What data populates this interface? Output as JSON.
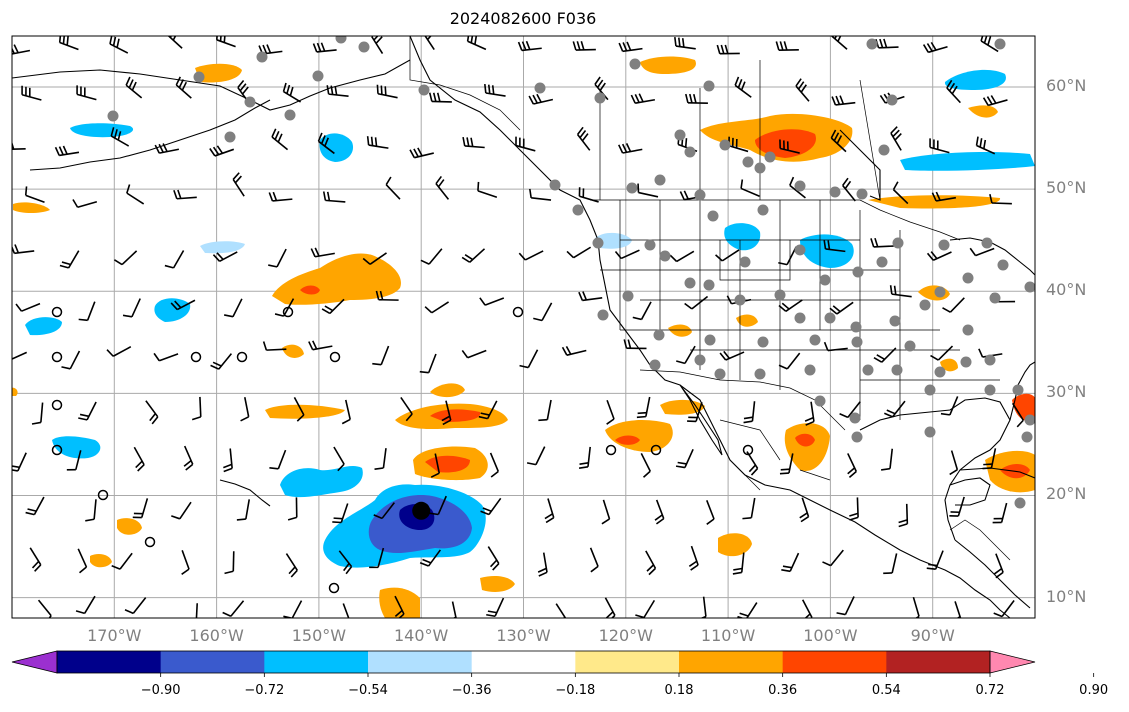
{
  "title": "2024082600 F036",
  "map": {
    "projection": "equirectangular",
    "lon_range": [
      -180,
      -80
    ],
    "lat_range": [
      8,
      65
    ],
    "grid": true,
    "lon_ticks": [
      "170°W",
      "160°W",
      "150°W",
      "140°W",
      "130°W",
      "120°W",
      "110°W",
      "100°W",
      "90°W"
    ],
    "lat_ticks": [
      "60°N",
      "50°N",
      "40°N",
      "30°N",
      "20°N",
      "10°N"
    ],
    "lon_tick_values": [
      -170,
      -160,
      -150,
      -140,
      -130,
      -120,
      -110,
      -100,
      -90
    ],
    "lat_tick_values": [
      60,
      50,
      40,
      30,
      20,
      10
    ],
    "storm_center": {
      "lon": -140,
      "lat": 18.5
    },
    "colors": {
      "grid": "#aaaaaa",
      "coast": "#000000",
      "station": "#808080",
      "tick_label": "#808080"
    }
  },
  "colorbar": {
    "levels": [
      "−0.90",
      "−0.72",
      "−0.54",
      "−0.36",
      "−0.18",
      "0.18",
      "0.36",
      "0.54",
      "0.72",
      "0.90"
    ],
    "colors": [
      "#9b30d0",
      "#00008b",
      "#3a5acd",
      "#00bfff",
      "#b0e0ff",
      "#ffffff",
      "#ffe98a",
      "#ffa500",
      "#ff4500",
      "#b22222",
      "#ff88b0"
    ],
    "extend": "both"
  },
  "chart_data": {
    "type": "map",
    "title": "2024082600 F036",
    "field_levels": [
      -0.9,
      -0.72,
      -0.54,
      -0.36,
      -0.18,
      0.18,
      0.36,
      0.54,
      0.72,
      0.9
    ],
    "features": [
      {
        "kind": "negative_anomaly",
        "lon": -140,
        "lat": 18,
        "peak": -0.72
      },
      {
        "kind": "positive_anomaly",
        "lon": -137,
        "lat": 24,
        "peak": 0.72
      },
      {
        "kind": "positive_anomaly",
        "lon": -136,
        "lat": 28,
        "peak": 0.72
      },
      {
        "kind": "positive_anomaly",
        "lon": -150,
        "lat": 40.5,
        "peak": 0.72
      },
      {
        "kind": "positive_anomaly",
        "lon": -105,
        "lat": 54,
        "peak": 0.72
      }
    ]
  }
}
